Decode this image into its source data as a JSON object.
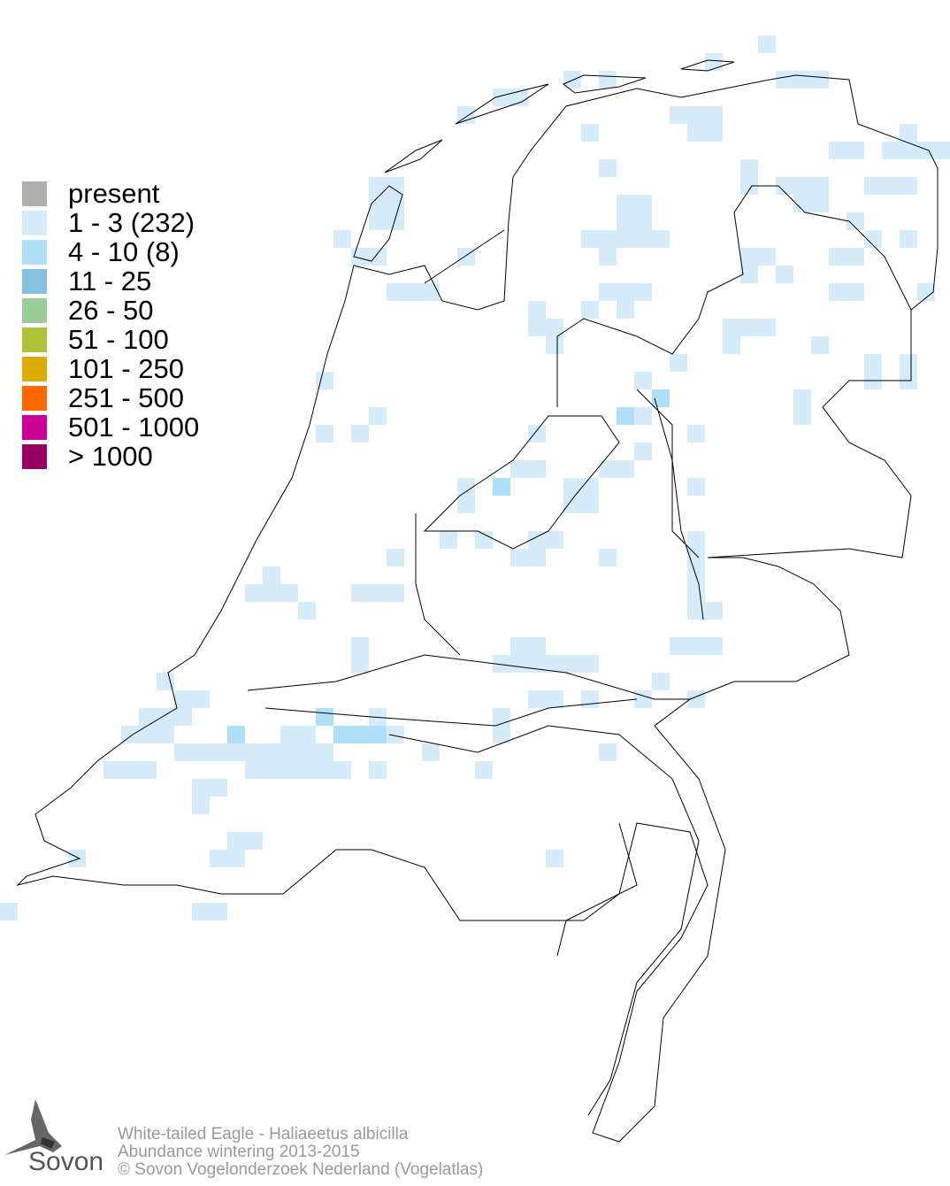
{
  "legend": {
    "items": [
      {
        "label": "present",
        "color": "#b0b0b0"
      },
      {
        "label": " 1 - 3 (232)",
        "color": "#d6ebf9"
      },
      {
        "label": " 4 - 10 (8)",
        "color": "#b0e0f8"
      },
      {
        "label": " 11 - 25",
        "color": "#86bfdf"
      },
      {
        "label": " 26 - 50",
        "color": "#99cc99"
      },
      {
        "label": " 51 - 100",
        "color": "#afc136"
      },
      {
        "label": " 101 - 250",
        "color": "#e0ab00"
      },
      {
        "label": " 251 - 500",
        "color": "#ff6600"
      },
      {
        "label": " 501 - 1000",
        "color": "#cc0099"
      },
      {
        "label": " > 1000",
        "color": "#990066"
      }
    ]
  },
  "footer": {
    "line1": "White-tailed Eagle - Haliaeetus albicilla",
    "line2": "Abundance wintering 2013-2015",
    "line3": "© Sovon Vogelonderzoek Nederland (Vogelatlas)"
  },
  "logo": {
    "text": "Sovon"
  }
}
